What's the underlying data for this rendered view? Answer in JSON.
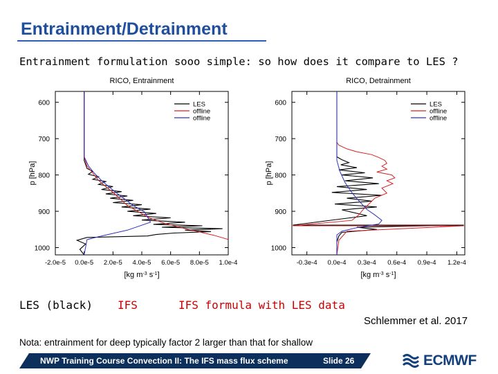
{
  "slide": {
    "title": "Entrainment/Detrainment",
    "subtitle": "Entrainment formulation sooo simple:  so how does it compare to LES ?",
    "legend_labels": [
      {
        "text": "LES (black)",
        "color": "#000000"
      },
      {
        "text": "IFS",
        "color": "#cc0000"
      },
      {
        "text": "IFS formula with LES data",
        "color": "#cc0000"
      }
    ],
    "citation": "Schlemmer et al. 2017",
    "note": "Nota: entrainment for deep typically factor 2 larger than that for shallow",
    "footer": {
      "course": "NWP Training Course Convection II: The IFS mass flux scheme",
      "slide": "Slide 26",
      "logo_text": "ECMWF"
    }
  },
  "colors": {
    "title": "#1f4e9c",
    "footer_bg": "#0d2f5c",
    "les": "#000000",
    "offline_red": "#d62020",
    "offline_blue": "#3030c0"
  },
  "chart_data": [
    {
      "type": "line",
      "title": "RICO, Entrainment",
      "xlabel": "[kg m-3 s-1]",
      "ylabel": "p [hPa]",
      "xlim": [
        -2e-05,
        0.0001
      ],
      "ylim": [
        1020,
        570
      ],
      "y_inverted": true,
      "xticks": [
        -2e-05,
        0.0,
        2e-05,
        4e-05,
        6e-05,
        8e-05,
        0.0001
      ],
      "xticklabels": [
        "-2.0e-5",
        "0.0e-5",
        "2.0e-5",
        "4.0e-5",
        "6.0e-5",
        "8.0e-5",
        "1.0e-4"
      ],
      "yticks": [
        600,
        700,
        800,
        900,
        1000
      ],
      "legend_position": "top-right",
      "series": [
        {
          "name": "LES",
          "color": "#000000",
          "x": [
            0,
            0,
            0,
            2e-06,
            6e-06,
            3e-06,
            1e-05,
            6e-06,
            1.5e-05,
            1e-05,
            2e-05,
            1.2e-05,
            2.6e-05,
            1.5e-05,
            3e-05,
            1.8e-05,
            3.4e-05,
            2e-05,
            4e-05,
            2.6e-05,
            4.6e-05,
            3e-05,
            5e-05,
            3.4e-05,
            6e-05,
            4e-05,
            7e-05,
            4.8e-05,
            8.2e-05,
            5.4e-05,
            9.6e-05,
            7e-05,
            8.8e-05,
            6.2e-05,
            5e-05,
            4.4e-05,
            2e-06,
            -5e-06,
            1e-06,
            -3e-06,
            0
          ],
          "y": [
            570,
            700,
            760,
            782,
            790,
            798,
            805,
            812,
            818,
            826,
            832,
            840,
            846,
            852,
            858,
            864,
            870,
            876,
            882,
            888,
            894,
            900,
            906,
            912,
            918,
            924,
            930,
            936,
            940,
            944,
            948,
            952,
            956,
            960,
            964,
            968,
            972,
            980,
            990,
            1005,
            1020
          ]
        },
        {
          "name": "offline",
          "color": "#d62020",
          "x": [
            0,
            0,
            0,
            2e-06,
            6e-06,
            1e-05,
            1.5e-05,
            2e-05,
            2.5e-05,
            3e-05,
            3.8e-05,
            4.5e-05,
            5.5e-05,
            7e-05,
            9e-05,
            0.000102
          ],
          "y": [
            570,
            700,
            750,
            775,
            795,
            815,
            832,
            848,
            866,
            884,
            902,
            918,
            932,
            948,
            966,
            980
          ]
        },
        {
          "name": "offline",
          "color": "#3030c0",
          "x": [
            0,
            0,
            0,
            3e-06,
            7e-06,
            1.2e-05,
            1.7e-05,
            2.2e-05,
            2.8e-05,
            3.4e-05,
            4.2e-05,
            4.6e-05,
            3e-05,
            1.2e-05,
            2e-06,
            0
          ],
          "y": [
            570,
            700,
            750,
            775,
            795,
            815,
            832,
            848,
            866,
            884,
            902,
            930,
            952,
            968,
            978,
            1020
          ]
        }
      ]
    },
    {
      "type": "line",
      "title": "RICO, Detrainment",
      "xlabel": "[kg m-3 s-1]",
      "ylabel": "p [hPa]",
      "xlim": [
        -4.5e-05,
        0.000128
      ],
      "ylim": [
        1020,
        570
      ],
      "y_inverted": true,
      "xticks": [
        -3e-05,
        0.0,
        3e-05,
        6e-05,
        9e-05,
        0.00012
      ],
      "xticklabels": [
        "-0.3e-4",
        "0.0e-4",
        "0.3e-4",
        "0.6e-4",
        "0.9e-4",
        "1.2e-4"
      ],
      "yticks": [
        600,
        700,
        800,
        900,
        1000
      ],
      "legend_position": "top-right",
      "series": [
        {
          "name": "LES",
          "color": "#000000",
          "x": [
            0,
            0,
            0,
            5e-06,
            1.2e-05,
            4e-06,
            2e-05,
            2e-06,
            2.8e-05,
            5e-06,
            3.6e-05,
            8e-06,
            4.2e-05,
            0.0,
            3e-05,
            -5e-06,
            4.5e-05,
            1e-05,
            3.5e-05,
            -2e-06,
            4e-05,
            5e-06,
            3e-05,
            -4.4e-05,
            0.000127,
            2e-05,
            4e-05,
            5e-06,
            2e-06,
            0.0,
            0
          ],
          "y": [
            570,
            740,
            750,
            758,
            766,
            772,
            780,
            786,
            794,
            800,
            808,
            816,
            824,
            832,
            840,
            848,
            856,
            864,
            872,
            880,
            888,
            896,
            912,
            938,
            938,
            944,
            950,
            958,
            968,
            985,
            1020
          ]
        },
        {
          "name": "offline",
          "color": "#d62020",
          "x": [
            0,
            0,
            0,
            2e-06,
            1e-05,
            2e-05,
            3.5e-05,
            4.2e-05,
            4.8e-05,
            5e-05,
            4.5e-05,
            5e-05,
            4e-05,
            5.5e-05,
            5.8e-05,
            5e-05,
            5.6e-05,
            4.5e-05,
            5e-05,
            3.8e-05,
            3.2e-05,
            2.6e-05,
            2.2e-05,
            1.5e-05,
            -4.4e-05,
            0.000127,
            1e-05,
            2e-06,
            0
          ],
          "y": [
            570,
            690,
            710,
            718,
            728,
            736,
            744,
            752,
            760,
            768,
            776,
            784,
            792,
            800,
            808,
            816,
            824,
            836,
            850,
            864,
            880,
            896,
            910,
            925,
            940,
            940,
            955,
            980,
            1020
          ]
        },
        {
          "name": "offline",
          "color": "#3030c0",
          "x": [
            0,
            0,
            0,
            3e-06,
            8e-06,
            1.4e-05,
            2e-05,
            2.5e-05,
            3e-05,
            3.8e-05,
            4.5e-05,
            4.2e-05,
            2e-05,
            5e-06,
            0,
            0
          ],
          "y": [
            570,
            700,
            760,
            790,
            820,
            845,
            865,
            880,
            895,
            910,
            925,
            935,
            945,
            955,
            965,
            1020
          ]
        }
      ]
    }
  ]
}
